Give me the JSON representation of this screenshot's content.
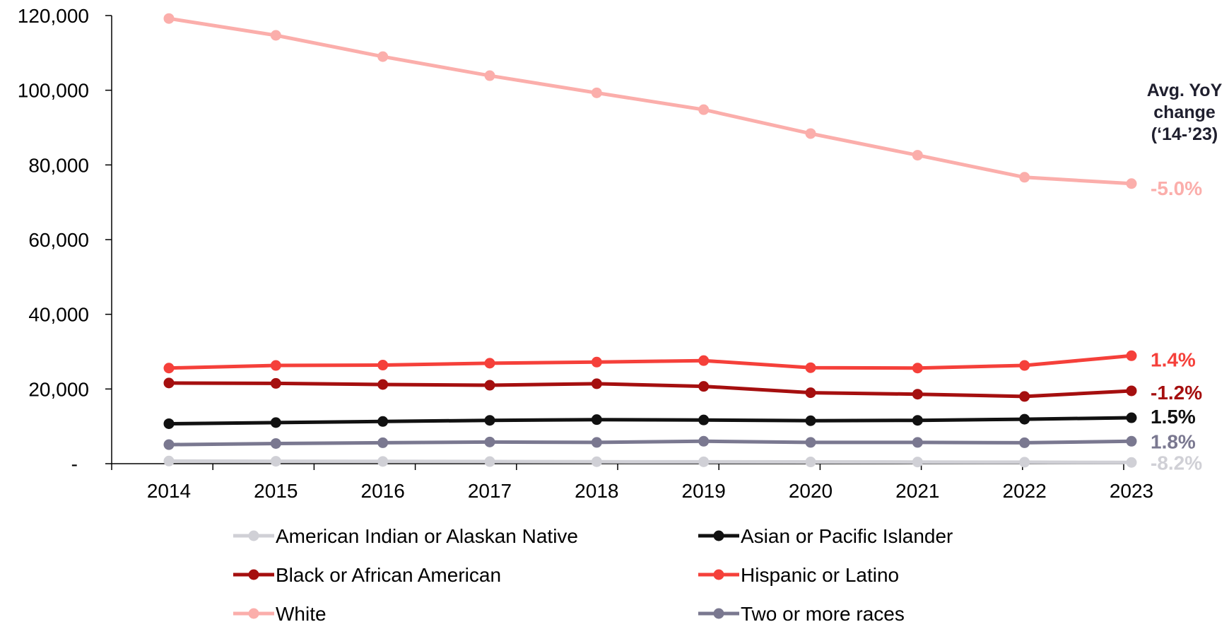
{
  "chart_data": {
    "type": "line",
    "x": [
      "2014",
      "2015",
      "2016",
      "2017",
      "2018",
      "2019",
      "2020",
      "2021",
      "2022",
      "2023"
    ],
    "ylim": [
      0,
      120000
    ],
    "yticks": [
      {
        "value": 0,
        "label": "-"
      },
      {
        "value": 20000,
        "label": "20,000"
      },
      {
        "value": 40000,
        "label": "40,000"
      },
      {
        "value": 60000,
        "label": "60,000"
      },
      {
        "value": 80000,
        "label": "80,000"
      },
      {
        "value": 100000,
        "label": "100,000"
      },
      {
        "value": 120000,
        "label": "120,000"
      }
    ],
    "grid": false,
    "legend_position": "bottom",
    "annotation_header": [
      "Avg. YoY",
      "change",
      "(‘14-’23)"
    ],
    "series": [
      {
        "name": "American Indian or Alaskan Native",
        "color": "#d0d0d6",
        "values": [
          700,
          650,
          600,
          560,
          520,
          500,
          470,
          440,
          400,
          330
        ],
        "end_label": "-8.2%"
      },
      {
        "name": "Asian or Pacific Islander",
        "color": "#111111",
        "values": [
          10700,
          11000,
          11300,
          11600,
          11800,
          11700,
          11500,
          11600,
          11900,
          12300
        ],
        "end_label": "1.5%"
      },
      {
        "name": "Black or African American",
        "color": "#a50f0f",
        "values": [
          21600,
          21500,
          21200,
          21000,
          21400,
          20700,
          19000,
          18600,
          18000,
          19500
        ],
        "end_label": "-1.2%"
      },
      {
        "name": "Hispanic or Latino",
        "color": "#f5403a",
        "values": [
          25600,
          26300,
          26400,
          26900,
          27200,
          27600,
          25700,
          25600,
          26300,
          28900
        ],
        "end_label": "1.4%"
      },
      {
        "name": "White",
        "color": "#fbaeab",
        "values": [
          119200,
          114700,
          109000,
          103900,
          99300,
          94800,
          88400,
          82600,
          76700,
          75000
        ],
        "end_label": "-5.0%"
      },
      {
        "name": "Two or more races",
        "color": "#7a7890",
        "values": [
          5100,
          5400,
          5600,
          5800,
          5700,
          6000,
          5700,
          5700,
          5600,
          6000
        ],
        "end_label": "1.8%"
      }
    ]
  }
}
